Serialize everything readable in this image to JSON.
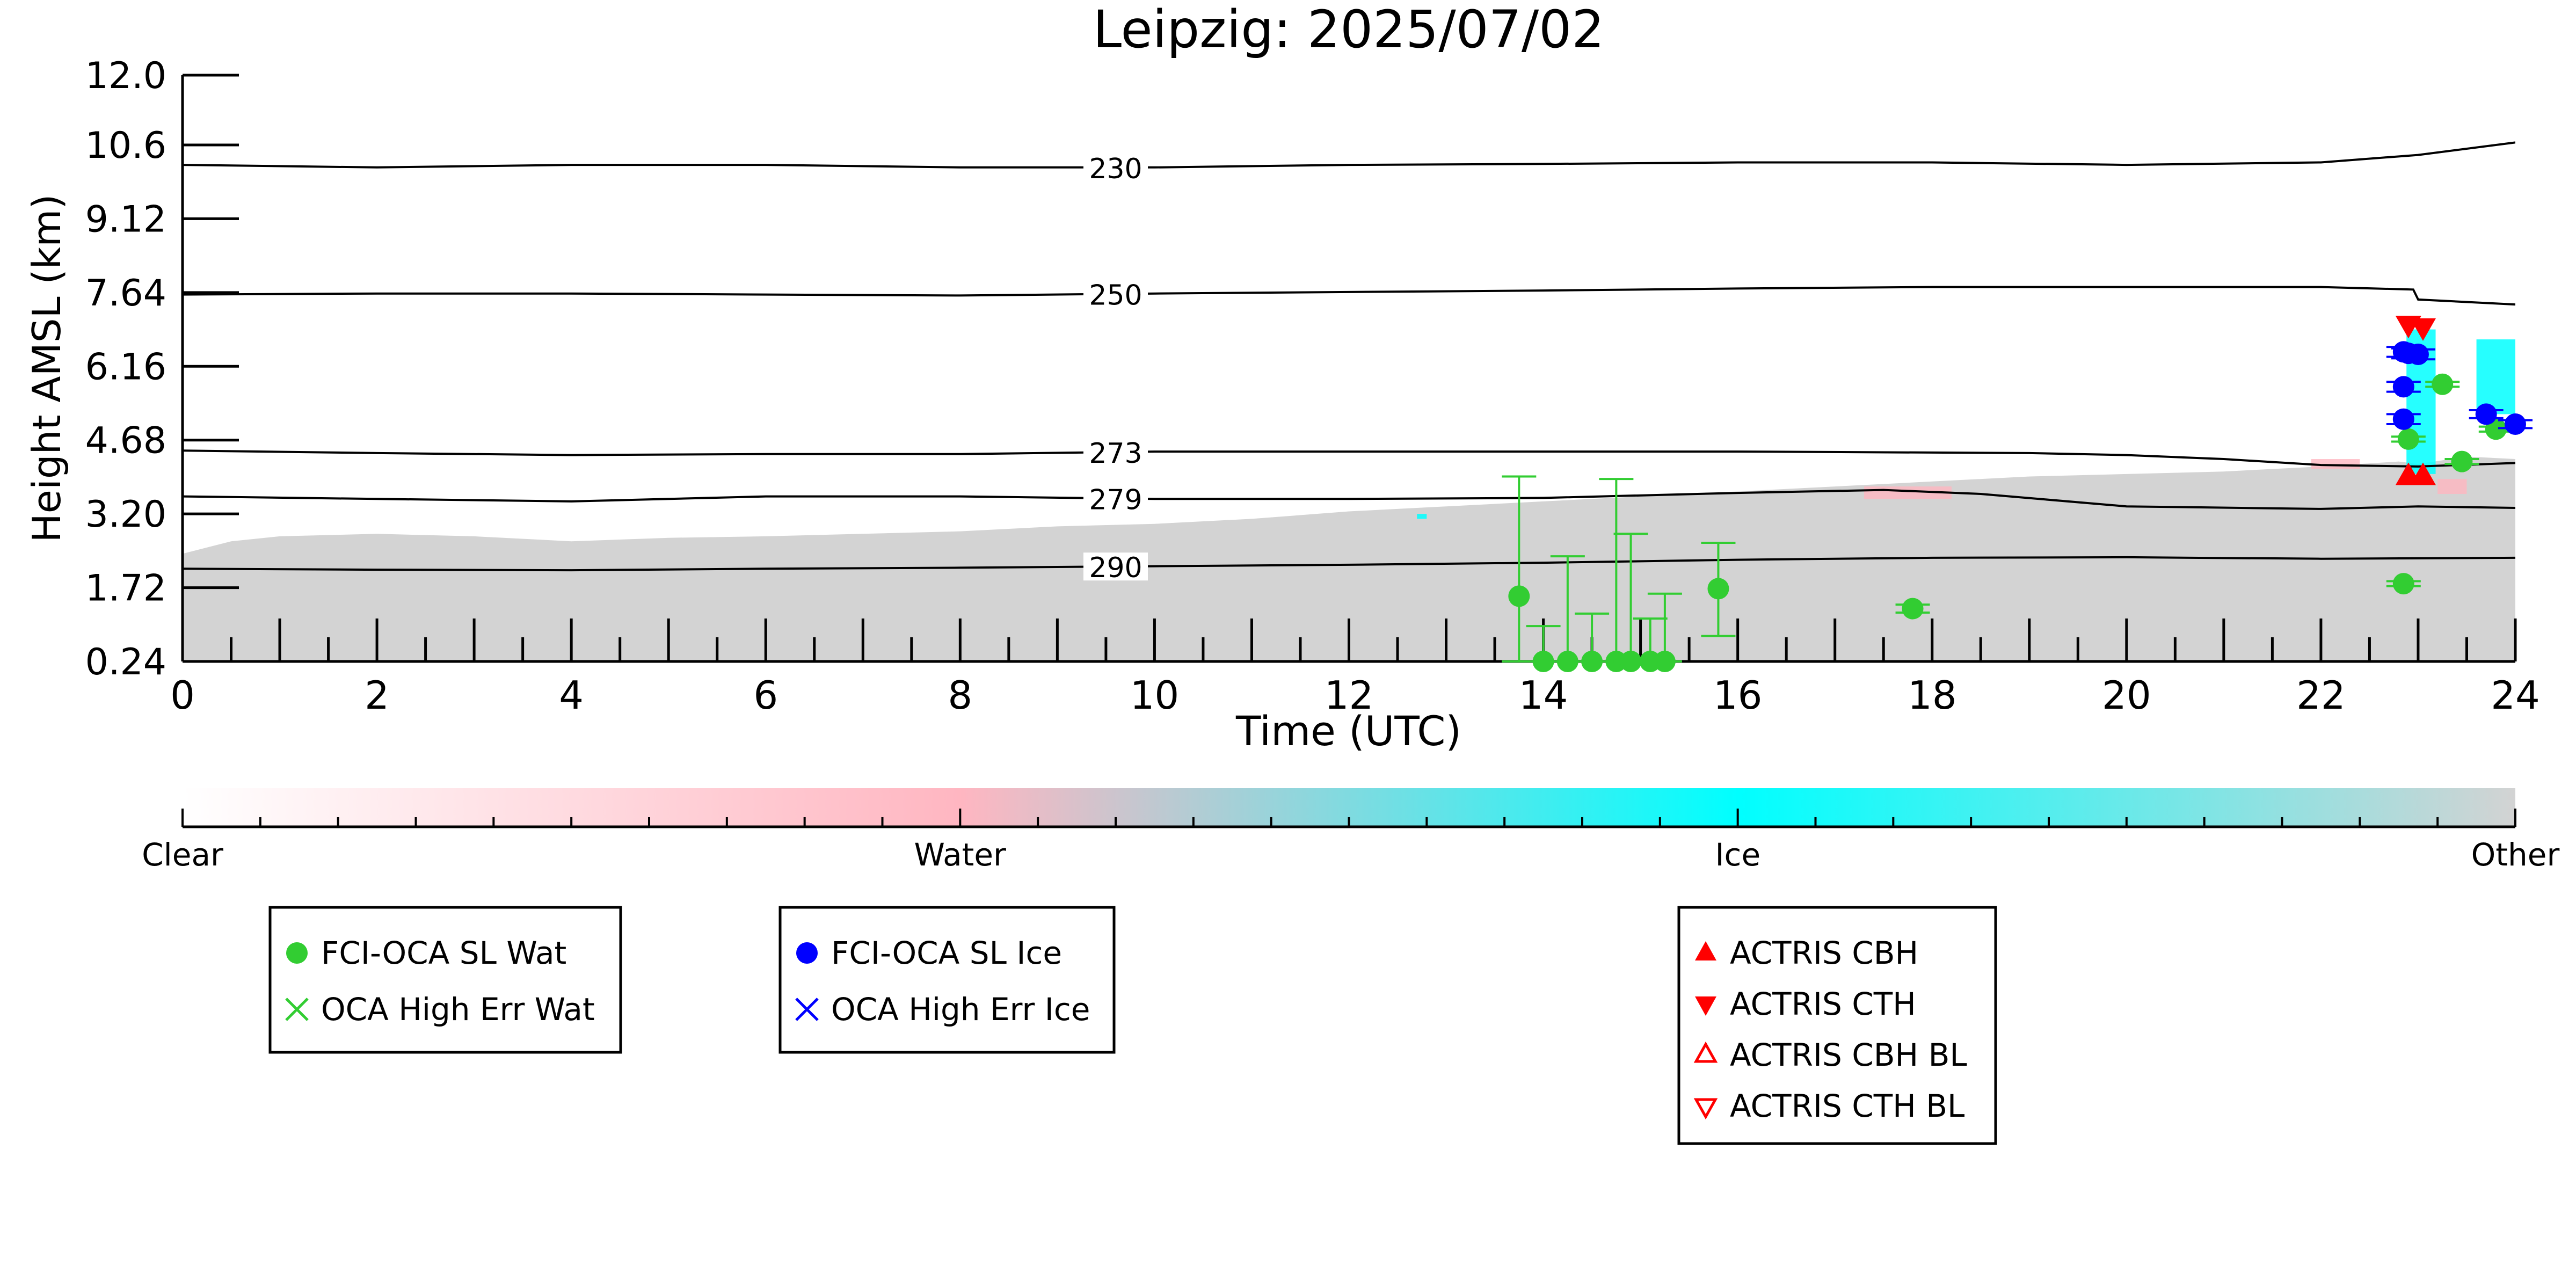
{
  "chart_data": {
    "type": "scatter",
    "title": "Leipzig: 2025/07/02",
    "xlabel": "Time (UTC)",
    "ylabel": "Height AMSL (km)",
    "xlim": [
      0,
      24
    ],
    "ylim": [
      0.24,
      12.0
    ],
    "x_ticks": [
      "0",
      "2",
      "4",
      "6",
      "8",
      "10",
      "12",
      "14",
      "16",
      "18",
      "20",
      "22",
      "24"
    ],
    "y_ticks": [
      "0.24",
      "1.72",
      "3.20",
      "4.68",
      "6.16",
      "7.64",
      "9.12",
      "10.6",
      "12.0"
    ],
    "cloud_field": {
      "classes": [
        "Clear",
        "Water",
        "Ice",
        "Other"
      ],
      "colors": {
        "Clear": "#ffffff",
        "Water": "#ffb6c1",
        "Ice": "#00ffff",
        "Other": "#d3d3d3"
      },
      "other_top_km": [
        [
          0.0,
          2.4
        ],
        [
          0.5,
          2.65
        ],
        [
          1.0,
          2.75
        ],
        [
          2.0,
          2.8
        ],
        [
          3.0,
          2.75
        ],
        [
          4.0,
          2.65
        ],
        [
          5.0,
          2.72
        ],
        [
          6.0,
          2.75
        ],
        [
          7.0,
          2.8
        ],
        [
          8.0,
          2.85
        ],
        [
          9.0,
          2.95
        ],
        [
          10.0,
          3.0
        ],
        [
          11.0,
          3.1
        ],
        [
          12.0,
          3.25
        ],
        [
          13.0,
          3.35
        ],
        [
          14.0,
          3.45
        ],
        [
          15.0,
          3.55
        ],
        [
          16.0,
          3.65
        ],
        [
          17.0,
          3.75
        ],
        [
          18.0,
          3.85
        ],
        [
          19.0,
          3.95
        ],
        [
          20.0,
          4.0
        ],
        [
          21.0,
          4.05
        ],
        [
          22.0,
          4.15
        ],
        [
          22.8,
          4.25
        ],
        [
          23.0,
          4.2
        ],
        [
          23.5,
          4.35
        ],
        [
          24.0,
          4.3
        ]
      ],
      "water_patches": [
        [
          17.3,
          18.2,
          3.5,
          3.75
        ],
        [
          21.9,
          22.4,
          4.1,
          4.3
        ],
        [
          23.2,
          23.5,
          3.6,
          3.9
        ]
      ],
      "ice_patches": [
        [
          22.88,
          23.18,
          4.0,
          6.9
        ],
        [
          23.6,
          24.0,
          5.2,
          6.7
        ],
        [
          12.7,
          12.8,
          3.1,
          3.2
        ]
      ]
    },
    "isotherms": [
      {
        "label": "230",
        "label_x": 9.6,
        "points": [
          [
            0,
            10.2
          ],
          [
            2,
            10.15
          ],
          [
            4,
            10.2
          ],
          [
            6,
            10.2
          ],
          [
            8,
            10.15
          ],
          [
            10,
            10.15
          ],
          [
            12,
            10.2
          ],
          [
            14,
            10.22
          ],
          [
            16,
            10.25
          ],
          [
            18,
            10.25
          ],
          [
            20,
            10.2
          ],
          [
            22,
            10.25
          ],
          [
            23,
            10.4
          ],
          [
            24,
            10.65
          ]
        ]
      },
      {
        "label": "250",
        "label_x": 9.6,
        "points": [
          [
            0,
            7.6
          ],
          [
            2,
            7.62
          ],
          [
            4,
            7.62
          ],
          [
            6,
            7.6
          ],
          [
            8,
            7.58
          ],
          [
            10,
            7.62
          ],
          [
            12,
            7.65
          ],
          [
            14,
            7.68
          ],
          [
            16,
            7.72
          ],
          [
            18,
            7.75
          ],
          [
            20,
            7.75
          ],
          [
            22,
            7.75
          ],
          [
            22.95,
            7.7
          ],
          [
            23.0,
            7.5
          ],
          [
            24,
            7.4
          ]
        ]
      },
      {
        "label": "273",
        "label_x": 9.6,
        "points": [
          [
            0,
            4.47
          ],
          [
            2,
            4.42
          ],
          [
            4,
            4.38
          ],
          [
            6,
            4.4
          ],
          [
            8,
            4.4
          ],
          [
            10,
            4.45
          ],
          [
            12,
            4.45
          ],
          [
            14,
            4.45
          ],
          [
            16,
            4.45
          ],
          [
            18,
            4.43
          ],
          [
            19,
            4.42
          ],
          [
            20,
            4.38
          ],
          [
            21,
            4.3
          ],
          [
            22,
            4.18
          ],
          [
            23,
            4.15
          ],
          [
            24,
            4.22
          ]
        ]
      },
      {
        "label": "279",
        "label_x": 9.6,
        "points": [
          [
            0,
            3.55
          ],
          [
            2,
            3.5
          ],
          [
            4,
            3.45
          ],
          [
            6,
            3.55
          ],
          [
            8,
            3.55
          ],
          [
            10,
            3.5
          ],
          [
            12,
            3.5
          ],
          [
            14,
            3.52
          ],
          [
            16,
            3.62
          ],
          [
            17.5,
            3.68
          ],
          [
            18.5,
            3.6
          ],
          [
            20,
            3.35
          ],
          [
            22,
            3.3
          ],
          [
            23,
            3.35
          ],
          [
            24,
            3.32
          ]
        ]
      },
      {
        "label": "290",
        "label_x": 9.6,
        "points": [
          [
            0,
            2.1
          ],
          [
            2,
            2.08
          ],
          [
            4,
            2.07
          ],
          [
            6,
            2.1
          ],
          [
            8,
            2.12
          ],
          [
            10,
            2.15
          ],
          [
            12,
            2.18
          ],
          [
            14,
            2.22
          ],
          [
            16,
            2.28
          ],
          [
            18,
            2.32
          ],
          [
            20,
            2.33
          ],
          [
            22,
            2.3
          ],
          [
            24,
            2.32
          ]
        ]
      }
    ],
    "series": [
      {
        "name": "FCI-OCA SL Wat",
        "marker": "circle",
        "color": "#32cd32",
        "points": [
          {
            "x": 13.75,
            "y": 1.55,
            "err_up": 3.95,
            "err_down": 0.24
          },
          {
            "x": 14.0,
            "y": 0.24,
            "err_up": 0.95,
            "err_down": 0.24
          },
          {
            "x": 14.25,
            "y": 0.24,
            "err_up": 2.35,
            "err_down": 0.24
          },
          {
            "x": 14.5,
            "y": 0.24,
            "err_up": 1.2,
            "err_down": 0.24
          },
          {
            "x": 14.75,
            "y": 0.24,
            "err_up": 3.9,
            "err_down": 0.24
          },
          {
            "x": 14.9,
            "y": 0.24,
            "err_up": 2.8,
            "err_down": 0.24
          },
          {
            "x": 15.1,
            "y": 0.24,
            "err_up": 1.1,
            "err_down": 0.24
          },
          {
            "x": 15.25,
            "y": 0.24,
            "err_up": 1.6,
            "err_down": 0.24
          },
          {
            "x": 15.8,
            "y": 1.7,
            "err_up": 2.62,
            "err_down": 0.75
          },
          {
            "x": 17.8,
            "y": 1.3,
            "err_up": 1.38,
            "err_down": 1.22
          },
          {
            "x": 22.85,
            "y": 1.8,
            "err_up": 1.85,
            "err_down": 1.75
          },
          {
            "x": 22.9,
            "y": 4.7,
            "err_up": 4.75,
            "err_down": 4.65
          },
          {
            "x": 23.25,
            "y": 5.8,
            "err_up": 5.85,
            "err_down": 5.75
          },
          {
            "x": 23.45,
            "y": 4.25,
            "err_up": 4.3,
            "err_down": 4.2
          },
          {
            "x": 23.8,
            "y": 4.9,
            "err_up": 4.95,
            "err_down": 4.85
          }
        ]
      },
      {
        "name": "OCA High Err Wat",
        "marker": "x",
        "color": "#32cd32",
        "points": []
      },
      {
        "name": "FCI-OCA SL Ice",
        "marker": "circle",
        "color": "#0000ff",
        "points": [
          {
            "x": 22.85,
            "y": 6.45,
            "err_up": 6.55,
            "err_down": 6.35
          },
          {
            "x": 22.9,
            "y": 6.42,
            "err_up": 6.52,
            "err_down": 6.32
          },
          {
            "x": 23.0,
            "y": 6.4,
            "err_up": 6.5,
            "err_down": 6.3
          },
          {
            "x": 22.85,
            "y": 5.75,
            "err_up": 5.85,
            "err_down": 5.65
          },
          {
            "x": 22.85,
            "y": 5.1,
            "err_up": 5.2,
            "err_down": 5.0
          },
          {
            "x": 23.7,
            "y": 5.2,
            "err_up": 5.28,
            "err_down": 5.12
          },
          {
            "x": 24.0,
            "y": 5.0,
            "err_up": 5.08,
            "err_down": 4.92
          }
        ]
      },
      {
        "name": "OCA High Err Ice",
        "marker": "x",
        "color": "#0000ff",
        "points": []
      },
      {
        "name": "ACTRIS CBH",
        "marker": "triangle-up",
        "color": "#ff0000",
        "points": [
          {
            "x": 22.9,
            "y": 3.95
          },
          {
            "x": 23.05,
            "y": 3.95
          }
        ]
      },
      {
        "name": "ACTRIS CTH",
        "marker": "triangle-down",
        "color": "#ff0000",
        "points": [
          {
            "x": 22.9,
            "y": 7.0
          },
          {
            "x": 23.05,
            "y": 6.95
          }
        ]
      },
      {
        "name": "ACTRIS CBH BL",
        "marker": "triangle-up-open",
        "color": "#ff0000",
        "points": []
      },
      {
        "name": "ACTRIS CTH BL",
        "marker": "triangle-down-open",
        "color": "#ff0000",
        "points": []
      }
    ],
    "colorbar": {
      "labels": [
        "Clear",
        "Water",
        "Ice",
        "Other"
      ],
      "positions": [
        0,
        0.3333,
        0.6667,
        1.0
      ]
    },
    "legends": [
      {
        "entries": [
          "FCI-OCA SL Wat",
          "OCA High Err Wat"
        ]
      },
      {
        "entries": [
          "FCI-OCA SL Ice",
          "OCA High Err Ice"
        ]
      },
      {
        "entries": [
          "ACTRIS CBH",
          "ACTRIS CTH",
          "ACTRIS CBH BL",
          "ACTRIS CTH BL"
        ]
      }
    ]
  }
}
